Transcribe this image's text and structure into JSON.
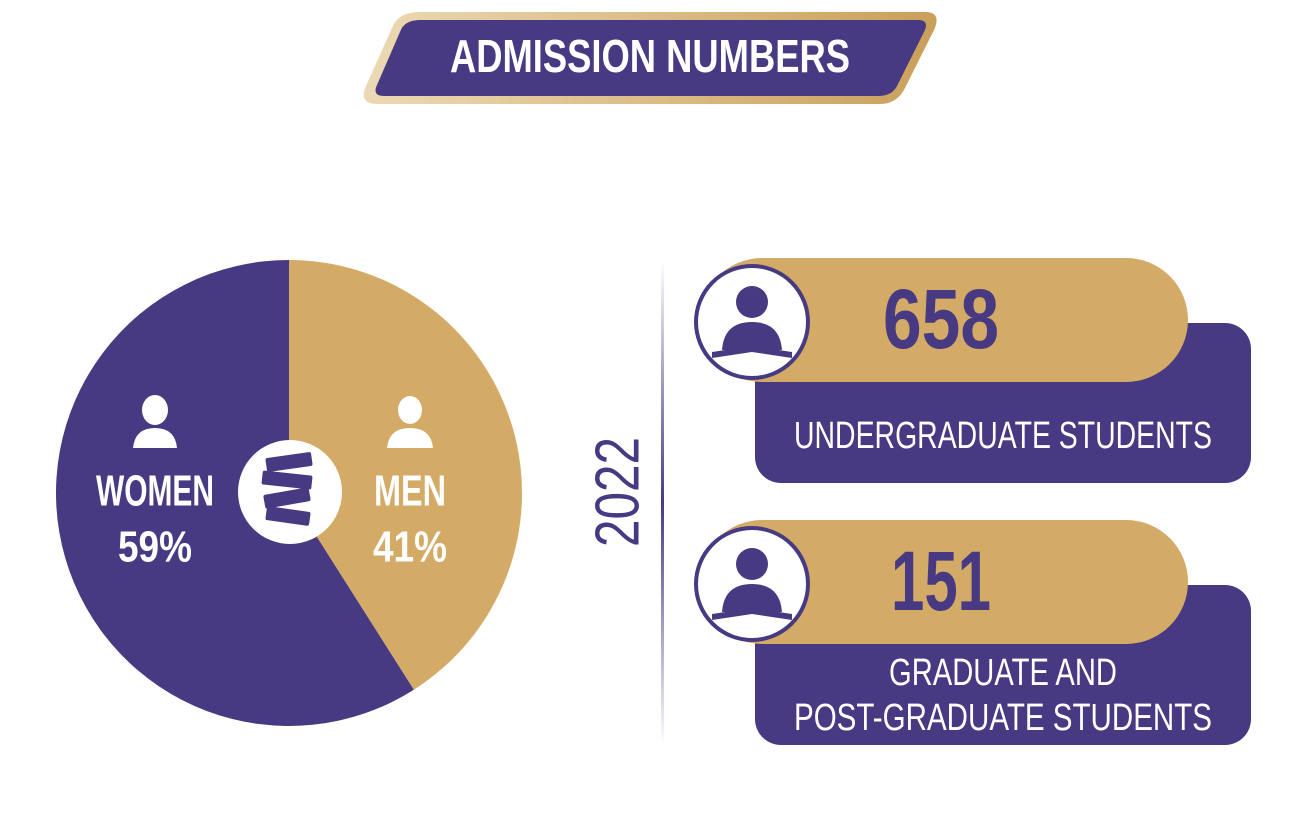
{
  "title": "ADMISSION NUMBERS",
  "chart_data": {
    "type": "pie",
    "categories": [
      "WOMEN",
      "MEN"
    ],
    "values": [
      59,
      41
    ],
    "value_labels": [
      "59%",
      "41%"
    ],
    "colors": [
      "#473a82",
      "#d3aa66"
    ]
  },
  "year": "2022",
  "stats": [
    {
      "number": 658,
      "label": [
        "UNDERGRADUATE STUDENTS"
      ]
    },
    {
      "number": 151,
      "label": [
        "GRADUATE AND",
        "POST-GRADUATE STUDENTS"
      ]
    }
  ]
}
